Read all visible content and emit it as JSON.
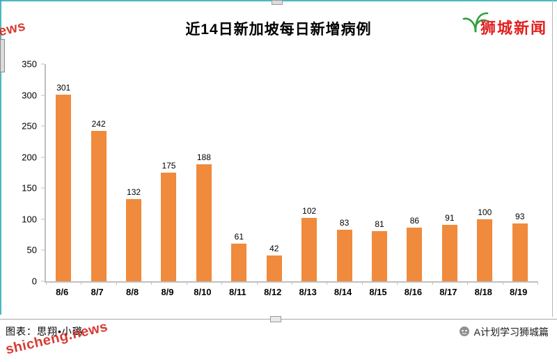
{
  "page": {
    "logo": "狮城新闻",
    "watermark": "shicheng.news",
    "footer_left": "图表：思翔•小璐",
    "footer_right": "A计划学习狮城篇"
  },
  "chart_data": {
    "type": "bar",
    "title": "近14日新加坡每日新增病例",
    "categories": [
      "8/6",
      "8/7",
      "8/8",
      "8/9",
      "8/10",
      "8/11",
      "8/12",
      "8/13",
      "8/14",
      "8/15",
      "8/16",
      "8/17",
      "8/18",
      "8/19"
    ],
    "values": [
      301,
      242,
      132,
      175,
      188,
      61,
      42,
      102,
      83,
      81,
      86,
      91,
      100,
      93
    ],
    "xlabel": "",
    "ylabel": "",
    "ylim": [
      0,
      350
    ],
    "yticks": [
      350,
      300,
      250,
      200,
      150,
      100,
      50,
      0
    ],
    "bar_color": "#f08a3c",
    "grid": false,
    "data_labels": true,
    "legend": "none"
  },
  "icons": {
    "logo_icon": "palm-leaves-icon",
    "account_icon": "wechat-account-icon"
  }
}
